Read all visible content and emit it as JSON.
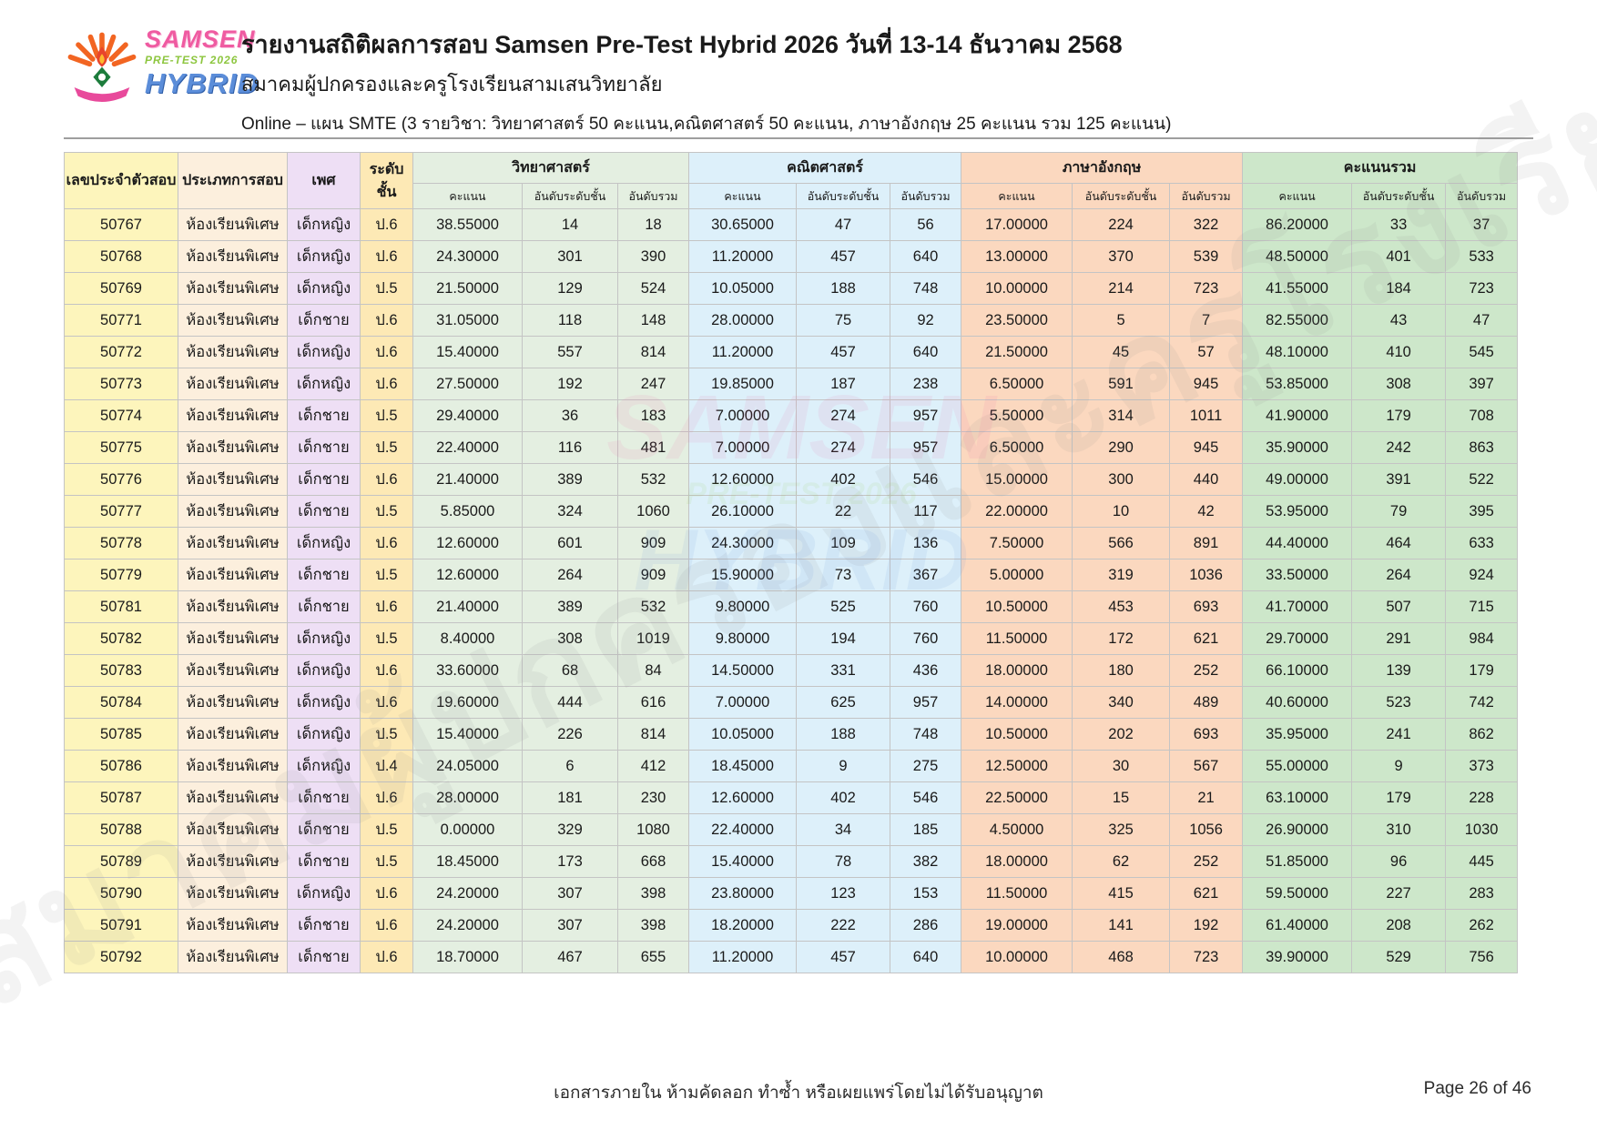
{
  "header": {
    "title": "รายงานสถิติผลการสอบ Samsen Pre-Test Hybrid 2026 วันที่ 13-14 ธันวาคม 2568",
    "subtitle": "สมาคมผู้ปกครองและครูโรงเรียนสามเสนวิทยาลัย",
    "plan_line": "Online – แผน SMTE (3 รายวิชา: วิทยาศาสตร์ 50 คะแนน,คณิตศาสตร์ 50 คะแนน, ภาษาอังกฤษ 25 คะแนน รวม 125 คะแนน)"
  },
  "logo": {
    "line1": "SAMSEN",
    "line2": "PRE-TEST 2026",
    "line3": "HYBRID"
  },
  "watermark": {
    "text": "สมาคมผู้ปกครองและครูโรงเรียนสามเสนวิทยาลัย"
  },
  "table": {
    "columns": {
      "id": "เลขประจำตัวสอบ",
      "exam_type": "ประเภทการสอบ",
      "gender": "เพศ",
      "grade": "ระดับชั้น",
      "groups": [
        "วิทยาศาสตร์",
        "คณิตศาสตร์",
        "ภาษาอังกฤษ",
        "คะแนนรวม"
      ],
      "sub": [
        "คะแนน",
        "อันดับระดับชั้น",
        "อันดับรวม"
      ]
    },
    "rows": [
      [
        "50767",
        "ห้องเรียนพิเศษ",
        "เด็กหญิง",
        "ป.6",
        "38.55000",
        "14",
        "18",
        "30.65000",
        "47",
        "56",
        "17.00000",
        "224",
        "322",
        "86.20000",
        "33",
        "37"
      ],
      [
        "50768",
        "ห้องเรียนพิเศษ",
        "เด็กหญิง",
        "ป.6",
        "24.30000",
        "301",
        "390",
        "11.20000",
        "457",
        "640",
        "13.00000",
        "370",
        "539",
        "48.50000",
        "401",
        "533"
      ],
      [
        "50769",
        "ห้องเรียนพิเศษ",
        "เด็กหญิง",
        "ป.5",
        "21.50000",
        "129",
        "524",
        "10.05000",
        "188",
        "748",
        "10.00000",
        "214",
        "723",
        "41.55000",
        "184",
        "723"
      ],
      [
        "50771",
        "ห้องเรียนพิเศษ",
        "เด็กชาย",
        "ป.6",
        "31.05000",
        "118",
        "148",
        "28.00000",
        "75",
        "92",
        "23.50000",
        "5",
        "7",
        "82.55000",
        "43",
        "47"
      ],
      [
        "50772",
        "ห้องเรียนพิเศษ",
        "เด็กหญิง",
        "ป.6",
        "15.40000",
        "557",
        "814",
        "11.20000",
        "457",
        "640",
        "21.50000",
        "45",
        "57",
        "48.10000",
        "410",
        "545"
      ],
      [
        "50773",
        "ห้องเรียนพิเศษ",
        "เด็กหญิง",
        "ป.6",
        "27.50000",
        "192",
        "247",
        "19.85000",
        "187",
        "238",
        "6.50000",
        "591",
        "945",
        "53.85000",
        "308",
        "397"
      ],
      [
        "50774",
        "ห้องเรียนพิเศษ",
        "เด็กชาย",
        "ป.5",
        "29.40000",
        "36",
        "183",
        "7.00000",
        "274",
        "957",
        "5.50000",
        "314",
        "1011",
        "41.90000",
        "179",
        "708"
      ],
      [
        "50775",
        "ห้องเรียนพิเศษ",
        "เด็กชาย",
        "ป.5",
        "22.40000",
        "116",
        "481",
        "7.00000",
        "274",
        "957",
        "6.50000",
        "290",
        "945",
        "35.90000",
        "242",
        "863"
      ],
      [
        "50776",
        "ห้องเรียนพิเศษ",
        "เด็กชาย",
        "ป.6",
        "21.40000",
        "389",
        "532",
        "12.60000",
        "402",
        "546",
        "15.00000",
        "300",
        "440",
        "49.00000",
        "391",
        "522"
      ],
      [
        "50777",
        "ห้องเรียนพิเศษ",
        "เด็กชาย",
        "ป.5",
        "5.85000",
        "324",
        "1060",
        "26.10000",
        "22",
        "117",
        "22.00000",
        "10",
        "42",
        "53.95000",
        "79",
        "395"
      ],
      [
        "50778",
        "ห้องเรียนพิเศษ",
        "เด็กหญิง",
        "ป.6",
        "12.60000",
        "601",
        "909",
        "24.30000",
        "109",
        "136",
        "7.50000",
        "566",
        "891",
        "44.40000",
        "464",
        "633"
      ],
      [
        "50779",
        "ห้องเรียนพิเศษ",
        "เด็กชาย",
        "ป.5",
        "12.60000",
        "264",
        "909",
        "15.90000",
        "73",
        "367",
        "5.00000",
        "319",
        "1036",
        "33.50000",
        "264",
        "924"
      ],
      [
        "50781",
        "ห้องเรียนพิเศษ",
        "เด็กชาย",
        "ป.6",
        "21.40000",
        "389",
        "532",
        "9.80000",
        "525",
        "760",
        "10.50000",
        "453",
        "693",
        "41.70000",
        "507",
        "715"
      ],
      [
        "50782",
        "ห้องเรียนพิเศษ",
        "เด็กหญิง",
        "ป.5",
        "8.40000",
        "308",
        "1019",
        "9.80000",
        "194",
        "760",
        "11.50000",
        "172",
        "621",
        "29.70000",
        "291",
        "984"
      ],
      [
        "50783",
        "ห้องเรียนพิเศษ",
        "เด็กหญิง",
        "ป.6",
        "33.60000",
        "68",
        "84",
        "14.50000",
        "331",
        "436",
        "18.00000",
        "180",
        "252",
        "66.10000",
        "139",
        "179"
      ],
      [
        "50784",
        "ห้องเรียนพิเศษ",
        "เด็กหญิง",
        "ป.6",
        "19.60000",
        "444",
        "616",
        "7.00000",
        "625",
        "957",
        "14.00000",
        "340",
        "489",
        "40.60000",
        "523",
        "742"
      ],
      [
        "50785",
        "ห้องเรียนพิเศษ",
        "เด็กหญิง",
        "ป.5",
        "15.40000",
        "226",
        "814",
        "10.05000",
        "188",
        "748",
        "10.50000",
        "202",
        "693",
        "35.95000",
        "241",
        "862"
      ],
      [
        "50786",
        "ห้องเรียนพิเศษ",
        "เด็กหญิง",
        "ป.4",
        "24.05000",
        "6",
        "412",
        "18.45000",
        "9",
        "275",
        "12.50000",
        "30",
        "567",
        "55.00000",
        "9",
        "373"
      ],
      [
        "50787",
        "ห้องเรียนพิเศษ",
        "เด็กชาย",
        "ป.6",
        "28.00000",
        "181",
        "230",
        "12.60000",
        "402",
        "546",
        "22.50000",
        "15",
        "21",
        "63.10000",
        "179",
        "228"
      ],
      [
        "50788",
        "ห้องเรียนพิเศษ",
        "เด็กชาย",
        "ป.5",
        "0.00000",
        "329",
        "1080",
        "22.40000",
        "34",
        "185",
        "4.50000",
        "325",
        "1056",
        "26.90000",
        "310",
        "1030"
      ],
      [
        "50789",
        "ห้องเรียนพิเศษ",
        "เด็กชาย",
        "ป.5",
        "18.45000",
        "173",
        "668",
        "15.40000",
        "78",
        "382",
        "18.00000",
        "62",
        "252",
        "51.85000",
        "96",
        "445"
      ],
      [
        "50790",
        "ห้องเรียนพิเศษ",
        "เด็กหญิง",
        "ป.6",
        "24.20000",
        "307",
        "398",
        "23.80000",
        "123",
        "153",
        "11.50000",
        "415",
        "621",
        "59.50000",
        "227",
        "283"
      ],
      [
        "50791",
        "ห้องเรียนพิเศษ",
        "เด็กชาย",
        "ป.6",
        "24.20000",
        "307",
        "398",
        "18.20000",
        "222",
        "286",
        "19.00000",
        "141",
        "192",
        "61.40000",
        "208",
        "262"
      ],
      [
        "50792",
        "ห้องเรียนพิเศษ",
        "เด็กชาย",
        "ป.6",
        "18.70000",
        "467",
        "655",
        "11.20000",
        "457",
        "640",
        "10.00000",
        "468",
        "723",
        "39.90000",
        "529",
        "756"
      ]
    ]
  },
  "footer": {
    "notice": "เอกสารภายใน ห้ามคัดลอก ทำซ้ำ หรือเผยแพร่โดยไม่ได้รับอนุญาต",
    "page": "Page 26 of 46"
  },
  "colors": {
    "id_col": "#fdf5bc",
    "type_col": "#fcefdd",
    "gender_col": "#eedff5",
    "grade_col": "#fde9b5",
    "science": "#e4efe1",
    "math": "#ddf0fa",
    "english": "#fbd8bf",
    "total": "#cde7ca",
    "accent_pink": "#ef5ba1",
    "accent_green": "#8dc63f",
    "accent_blue": "#5b8dd9",
    "accent_orange": "#f26522"
  }
}
